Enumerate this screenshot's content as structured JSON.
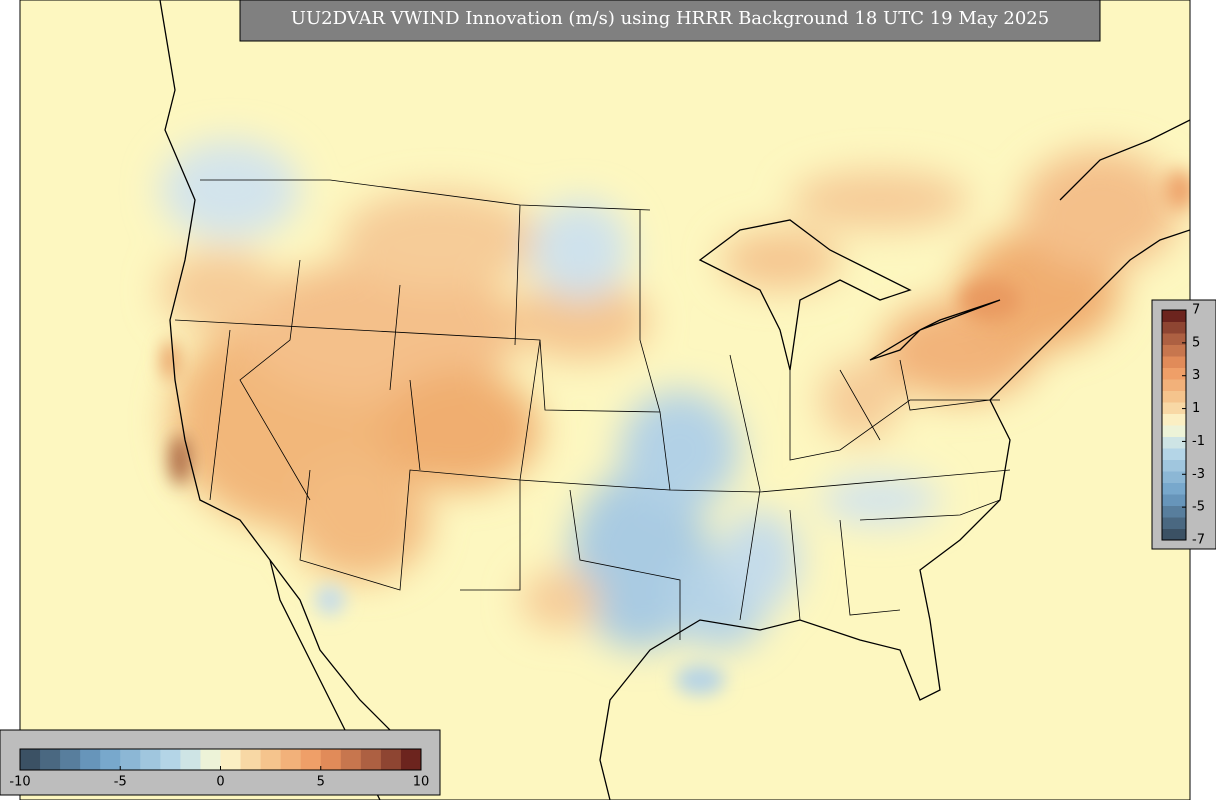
{
  "title": "UU2DVAR VWIND Innovation (m/s) using HRRR Background 18 UTC 19 May 2025",
  "colorbars": [
    {
      "orientation": "horizontal",
      "lim": [
        -10,
        10
      ],
      "ticks": [
        -10,
        -5,
        0,
        5,
        10
      ]
    },
    {
      "orientation": "vertical",
      "lim": [
        -7,
        7
      ],
      "ticks": [
        7,
        5,
        3,
        1,
        -1,
        -3,
        -5,
        -7
      ]
    }
  ]
}
